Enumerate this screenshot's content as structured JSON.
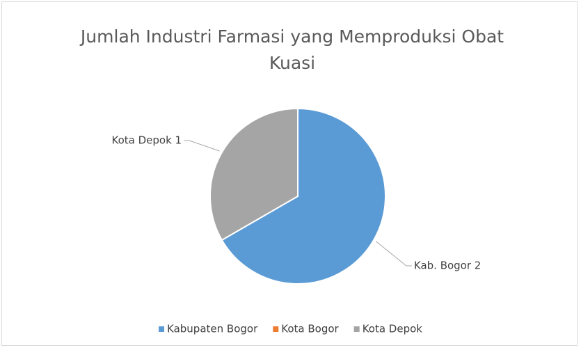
{
  "chart_data": {
    "type": "pie",
    "title": "Jumlah Industri Farmasi yang Memproduksi Obat Kuasi",
    "categories": [
      "Kabupaten Bogor",
      "Kota Bogor",
      "Kota Depok"
    ],
    "values": [
      2,
      0,
      1
    ],
    "value_labels": [
      "Kab. Bogor 2",
      null,
      "Kota Depok 1"
    ],
    "colors": [
      "#5b9bd5",
      "#ed7d31",
      "#a5a5a5"
    ],
    "legend": "bottom"
  }
}
